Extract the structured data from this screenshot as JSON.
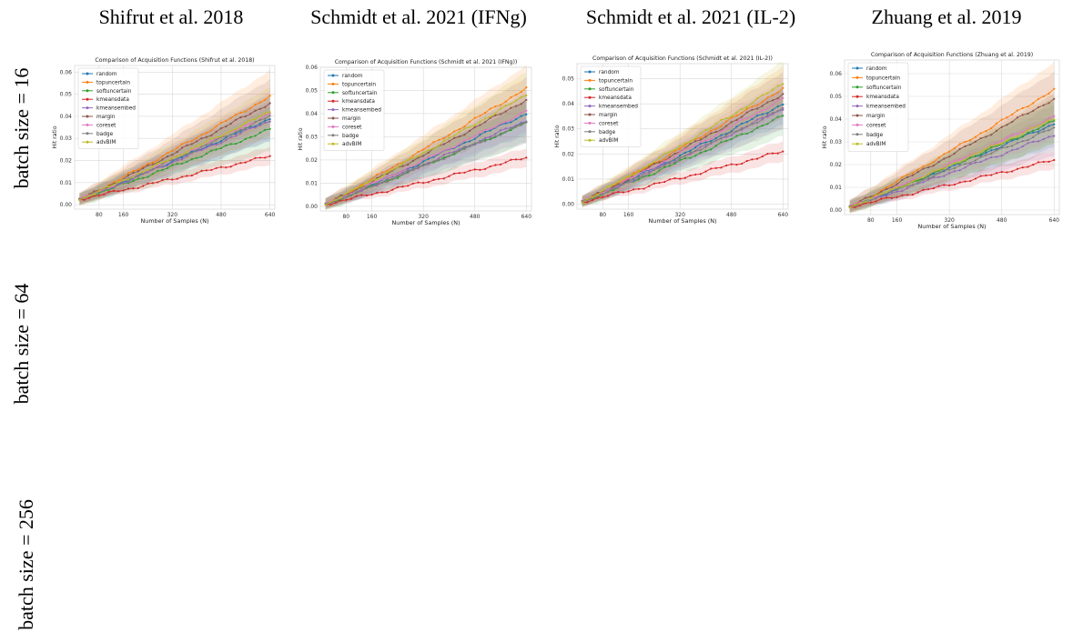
{
  "column_titles": [
    "Shifrut et al. 2018",
    "Schmidt et al. 2021 (IFNg)",
    "Schmidt et al. 2021 (IL-2)",
    "Zhuang et al. 2019"
  ],
  "row_labels": [
    "batch size = 16",
    "batch size = 64",
    "batch size = 256"
  ],
  "colors": {
    "random": "#1f77b4",
    "topuncertain": "#ff7f0e",
    "softuncertain": "#2ca02c",
    "kmeansdata": "#d62728",
    "kmeansembed": "#9467bd",
    "margin": "#8c564b",
    "coreset": "#e377c2",
    "badge": "#7f7f7f",
    "advBIM": "#bcbd22"
  },
  "chart_data": [
    {
      "type": "line",
      "title": "Comparison of Acquisition Functions (Shifrut et al. 2018)",
      "xlabel": "Number of Samples (N)",
      "ylabel": "Hit ratio",
      "xticks": [
        80,
        160,
        320,
        480,
        640
      ],
      "yticks": [
        "0.00",
        "0.01",
        "0.02",
        "0.03",
        "0.04",
        "0.05",
        "0.06"
      ],
      "xlim": [
        0,
        656
      ],
      "ylim": [
        -0.002,
        0.063
      ],
      "grid": true,
      "legend": "top-left",
      "x_start": 16,
      "x_end": 640,
      "series": [
        {
          "name": "random",
          "marker": "circle",
          "start": 0.0025,
          "end": 0.039,
          "band": 0.01
        },
        {
          "name": "topuncertain",
          "marker": "square",
          "start": 0.0025,
          "end": 0.049,
          "band": 0.012
        },
        {
          "name": "softuncertain",
          "marker": "x",
          "start": 0.0025,
          "end": 0.034,
          "band": 0.01
        },
        {
          "name": "kmeansdata",
          "marker": "dot",
          "start": 0.0025,
          "end": 0.022,
          "band": 0.004
        },
        {
          "name": "kmeansembed",
          "marker": "diamond",
          "start": 0.0025,
          "end": 0.038,
          "band": 0.009
        },
        {
          "name": "margin",
          "marker": "line",
          "start": 0.0025,
          "end": 0.046,
          "band": 0.011
        },
        {
          "name": "coreset",
          "marker": "tri-down",
          "start": 0.0025,
          "end": 0.041,
          "band": 0.01
        },
        {
          "name": "badge",
          "marker": "tri-right",
          "start": 0.0025,
          "end": 0.04,
          "band": 0.01
        },
        {
          "name": "advBIM",
          "marker": "tri-left",
          "start": 0.0025,
          "end": 0.042,
          "band": 0.011
        }
      ]
    },
    {
      "type": "line",
      "title": "Comparison of Acquisition Functions (Schmidt et al. 2021 (IFNg))",
      "xlabel": "Number of Samples (N)",
      "ylabel": "Hit ratio",
      "xticks": [
        80,
        160,
        320,
        480,
        640
      ],
      "yticks": [
        "0.00",
        "0.01",
        "0.02",
        "0.03",
        "0.04",
        "0.05",
        "0.06"
      ],
      "xlim": [
        0,
        656
      ],
      "ylim": [
        -0.002,
        0.06
      ],
      "grid": true,
      "legend": "top-left",
      "x_start": 16,
      "x_end": 640,
      "series": [
        {
          "name": "random",
          "marker": "circle",
          "start": 0.001,
          "end": 0.04,
          "band": 0.009
        },
        {
          "name": "topuncertain",
          "marker": "square",
          "start": 0.001,
          "end": 0.051,
          "band": 0.01
        },
        {
          "name": "softuncertain",
          "marker": "x",
          "start": 0.001,
          "end": 0.036,
          "band": 0.009
        },
        {
          "name": "kmeansdata",
          "marker": "dot",
          "start": 0.001,
          "end": 0.021,
          "band": 0.004
        },
        {
          "name": "kmeansembed",
          "marker": "diamond",
          "start": 0.001,
          "end": 0.037,
          "band": 0.009
        },
        {
          "name": "margin",
          "marker": "line",
          "start": 0.001,
          "end": 0.046,
          "band": 0.01
        },
        {
          "name": "coreset",
          "marker": "tri-down",
          "start": 0.001,
          "end": 0.041,
          "band": 0.009
        },
        {
          "name": "badge",
          "marker": "tri-right",
          "start": 0.001,
          "end": 0.036,
          "band": 0.009
        },
        {
          "name": "advBIM",
          "marker": "tri-left",
          "start": 0.001,
          "end": 0.048,
          "band": 0.01
        }
      ]
    },
    {
      "type": "line",
      "title": "Comparison of Acquisition Functions (Schmidt et al. 2021 (IL-2))",
      "xlabel": "Number of Samples (N)",
      "ylabel": "Hit ratio",
      "xticks": [
        80,
        160,
        320,
        480,
        640
      ],
      "yticks": [
        "0.00",
        "0.01",
        "0.02",
        "0.03",
        "0.04",
        "0.05"
      ],
      "xlim": [
        0,
        656
      ],
      "ylim": [
        -0.002,
        0.056
      ],
      "grid": true,
      "legend": "top-left",
      "x_start": 16,
      "x_end": 640,
      "series": [
        {
          "name": "random",
          "marker": "circle",
          "start": 0.001,
          "end": 0.04,
          "band": 0.008
        },
        {
          "name": "topuncertain",
          "marker": "square",
          "start": 0.001,
          "end": 0.046,
          "band": 0.009
        },
        {
          "name": "softuncertain",
          "marker": "x",
          "start": 0.001,
          "end": 0.035,
          "band": 0.008
        },
        {
          "name": "kmeansdata",
          "marker": "dot",
          "start": 0.001,
          "end": 0.021,
          "band": 0.004
        },
        {
          "name": "kmeansembed",
          "marker": "diamond",
          "start": 0.001,
          "end": 0.038,
          "band": 0.008
        },
        {
          "name": "margin",
          "marker": "line",
          "start": 0.001,
          "end": 0.044,
          "band": 0.009
        },
        {
          "name": "coreset",
          "marker": "tri-down",
          "start": 0.001,
          "end": 0.042,
          "band": 0.008
        },
        {
          "name": "badge",
          "marker": "tri-right",
          "start": 0.001,
          "end": 0.038,
          "band": 0.008
        },
        {
          "name": "advBIM",
          "marker": "tri-left",
          "start": 0.001,
          "end": 0.048,
          "band": 0.009
        }
      ]
    },
    {
      "type": "line",
      "title": "Comparison of Acquisition Functions (Zhuang et al. 2019)",
      "xlabel": "Number of Samples (N)",
      "ylabel": "Hit ratio",
      "xticks": [
        80,
        160,
        320,
        480,
        640
      ],
      "yticks": [
        "0.00",
        "0.01",
        "0.02",
        "0.03",
        "0.04",
        "0.05",
        "0.06"
      ],
      "xlim": [
        0,
        656
      ],
      "ylim": [
        -0.002,
        0.066
      ],
      "grid": true,
      "legend": "top-left",
      "x_start": 16,
      "x_end": 640,
      "series": [
        {
          "name": "random",
          "marker": "circle",
          "start": 0.0015,
          "end": 0.038,
          "band": 0.01
        },
        {
          "name": "topuncertain",
          "marker": "square",
          "start": 0.0015,
          "end": 0.053,
          "band": 0.012
        },
        {
          "name": "softuncertain",
          "marker": "x",
          "start": 0.0015,
          "end": 0.039,
          "band": 0.01
        },
        {
          "name": "kmeansdata",
          "marker": "dot",
          "start": 0.0015,
          "end": 0.022,
          "band": 0.004
        },
        {
          "name": "kmeansembed",
          "marker": "diamond",
          "start": 0.0015,
          "end": 0.033,
          "band": 0.009
        },
        {
          "name": "margin",
          "marker": "line",
          "start": 0.0015,
          "end": 0.049,
          "band": 0.012
        },
        {
          "name": "coreset",
          "marker": "tri-down",
          "start": 0.0015,
          "end": 0.041,
          "band": 0.01
        },
        {
          "name": "badge",
          "marker": "tri-right",
          "start": 0.0015,
          "end": 0.036,
          "band": 0.01
        },
        {
          "name": "advBIM",
          "marker": "tri-left",
          "start": 0.0015,
          "end": 0.04,
          "band": 0.011
        }
      ]
    }
  ]
}
